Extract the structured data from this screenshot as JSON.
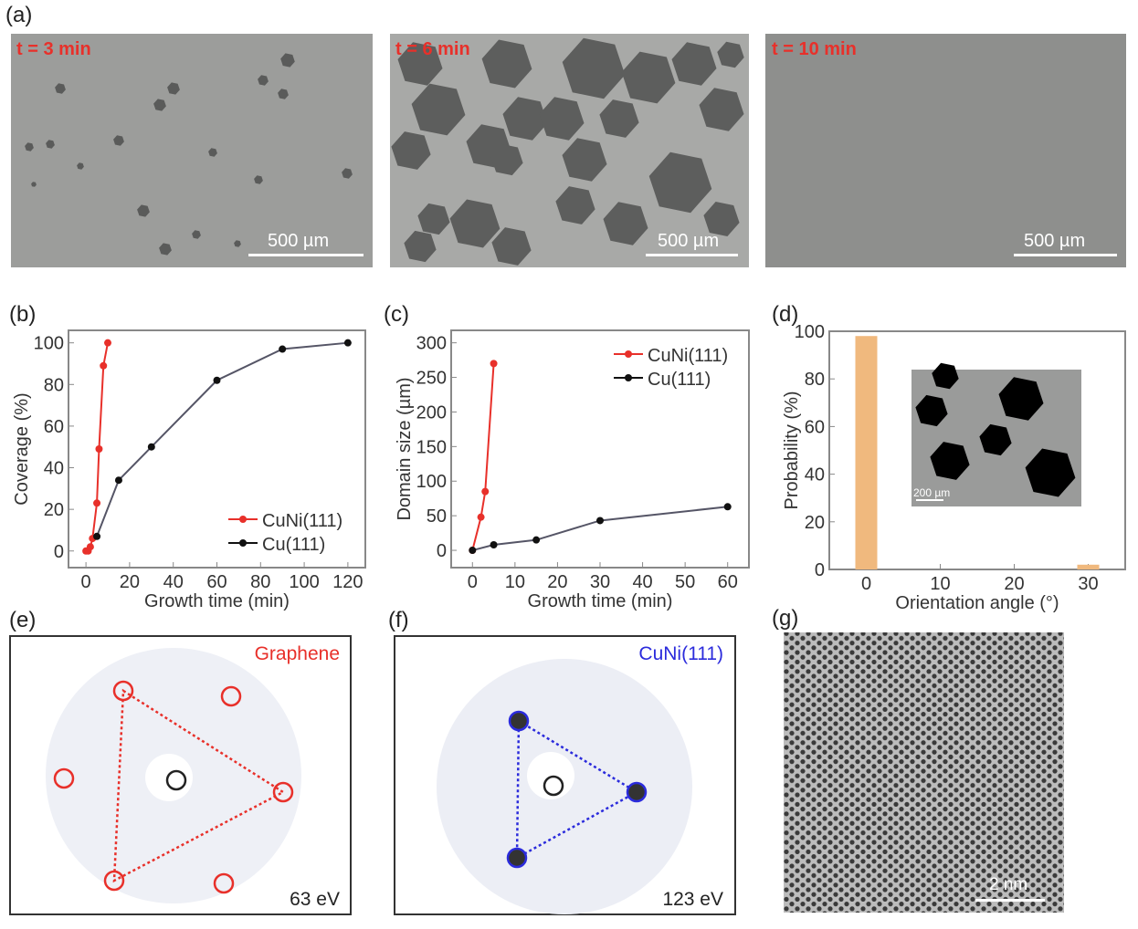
{
  "panel_labels": {
    "a": "(a)",
    "b": "(b)",
    "c": "(c)",
    "d": "(d)",
    "e": "(e)",
    "f": "(f)",
    "g": "(g)"
  },
  "micrographs": [
    {
      "time_label": "t = 3 min",
      "scale_bar": "500 µm"
    },
    {
      "time_label": "t = 6 min",
      "scale_bar": "500 µm"
    },
    {
      "time_label": "t = 10 min",
      "scale_bar": "500 µm"
    }
  ],
  "chart_data": [
    {
      "id": "b",
      "type": "line",
      "xlabel": "Growth time (min)",
      "ylabel": "Coverage (%)",
      "xlim": [
        -8,
        128
      ],
      "ylim": [
        -8,
        106
      ],
      "xticks": [
        0,
        20,
        40,
        60,
        80,
        100,
        120
      ],
      "yticks": [
        0,
        20,
        40,
        60,
        80,
        100
      ],
      "legend": "bottom-right",
      "series": [
        {
          "name": "CuNi(111)",
          "color": "#e8302a",
          "x": [
            0,
            1,
            2,
            3,
            5,
            6,
            8,
            10
          ],
          "y": [
            0,
            0,
            2,
            6,
            23,
            49,
            89,
            100
          ]
        },
        {
          "name": "Cu(111)",
          "color": "#111111",
          "x": [
            5,
            15,
            30,
            60,
            90,
            120
          ],
          "y": [
            7,
            34,
            50,
            82,
            97,
            100
          ]
        }
      ]
    },
    {
      "id": "c",
      "type": "line",
      "xlabel": "Growth time (min)",
      "ylabel": "Domain size (µm)",
      "xlim": [
        -5,
        65
      ],
      "ylim": [
        -25,
        318
      ],
      "xticks": [
        0,
        10,
        20,
        30,
        40,
        50,
        60
      ],
      "yticks": [
        0,
        50,
        100,
        150,
        200,
        250,
        300
      ],
      "legend": "top-right",
      "series": [
        {
          "name": "CuNi(111)",
          "color": "#e8302a",
          "x": [
            0,
            2,
            3,
            5
          ],
          "y": [
            0,
            48,
            85,
            270
          ]
        },
        {
          "name": "Cu(111)",
          "color": "#111111",
          "x": [
            0,
            5,
            15,
            30,
            60
          ],
          "y": [
            0,
            8,
            15,
            43,
            63
          ]
        }
      ]
    },
    {
      "id": "d",
      "type": "bar",
      "xlabel": "Orientation angle (°)",
      "ylabel": "Probability (%)",
      "xlim": [
        -5,
        35
      ],
      "ylim": [
        0,
        100
      ],
      "xticks": [
        0,
        10,
        20,
        30
      ],
      "yticks": [
        0,
        20,
        40,
        60,
        80,
        100
      ],
      "color": "#f0b97e",
      "x": [
        0,
        30
      ],
      "y": [
        98,
        2
      ],
      "inset_scale": "200 µm"
    }
  ],
  "leed": [
    {
      "title": "Graphene",
      "energy": "63 eV",
      "color": "#e8302a"
    },
    {
      "title": "CuNi(111)",
      "energy": "123 eV",
      "color": "#2b2bdc"
    }
  ],
  "stm": {
    "scale_bar": "2 nm"
  }
}
